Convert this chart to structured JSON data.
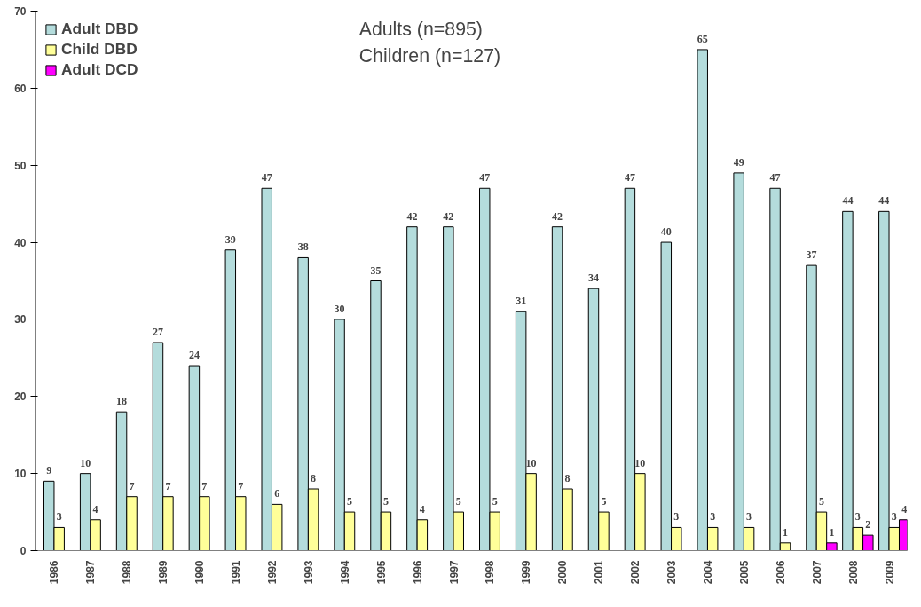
{
  "chart_data": {
    "type": "bar",
    "categories": [
      "1986",
      "1987",
      "1988",
      "1989",
      "1990",
      "1991",
      "1992",
      "1993",
      "1994",
      "1995",
      "1996",
      "1997",
      "1998",
      "1999",
      "2000",
      "2001",
      "2002",
      "2003",
      "2004",
      "2005",
      "2006",
      "2007",
      "2008",
      "2009"
    ],
    "series": [
      {
        "name": "Adult DBD",
        "color": "#b4dcdc",
        "values": [
          9,
          10,
          18,
          27,
          24,
          39,
          47,
          38,
          30,
          35,
          42,
          42,
          47,
          31,
          42,
          34,
          47,
          40,
          65,
          49,
          47,
          37,
          44,
          44
        ]
      },
      {
        "name": "Child DBD",
        "color": "#ffff99",
        "values": [
          3,
          4,
          7,
          7,
          7,
          7,
          6,
          8,
          5,
          5,
          4,
          5,
          5,
          10,
          8,
          5,
          10,
          3,
          3,
          3,
          1,
          5,
          3,
          3
        ]
      },
      {
        "name": "Adult DCD",
        "color": "#ff00ff",
        "values": [
          null,
          null,
          null,
          null,
          null,
          null,
          null,
          null,
          null,
          null,
          null,
          null,
          null,
          null,
          null,
          null,
          null,
          null,
          null,
          null,
          null,
          1,
          2,
          4
        ]
      }
    ],
    "ylim": [
      0,
      70
    ],
    "yticks": [
      0,
      10,
      20,
      30,
      40,
      50,
      60,
      70
    ],
    "annotations": [
      "Adults (n=895)",
      "Children (n=127)"
    ],
    "data_labels": true,
    "legend": "top left",
    "grid": false
  }
}
